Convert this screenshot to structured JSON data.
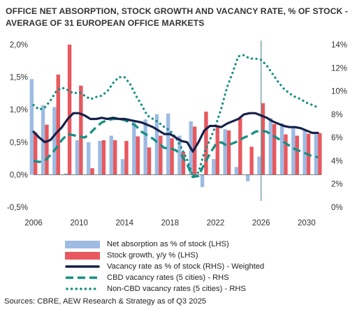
{
  "chart_data": {
    "type": "bar+line",
    "title_lines": [
      "OFFICE NET ABSORPTION, STOCK GROWTH AND VACANCY RATE, % OF STOCK -",
      "AVERAGE OF 31 EUROPEAN OFFICE MARKETS"
    ],
    "source": "Sources: CBRE, AEW Research & Strategy as of Q3 2025",
    "x_ticks": [
      "2006",
      "2010",
      "2014",
      "2018",
      "2022",
      "2026",
      "2030"
    ],
    "x_range": [
      2006,
      2031.3
    ],
    "left_axis": {
      "ticks": [
        "-0,5%",
        "0,0%",
        "0,5%",
        "1,0%",
        "1,5%",
        "2,0%"
      ],
      "range": [
        -0.5,
        2.0
      ]
    },
    "right_axis": {
      "ticks": [
        "0%",
        "2%",
        "4%",
        "6%",
        "8%",
        "10%",
        "12%",
        "14%"
      ],
      "range": [
        0,
        14
      ]
    },
    "forecast_marker_year": 2026,
    "colors": {
      "net_absorption": "#9dbbe3",
      "stock_growth": "#e8585e",
      "vacancy_weighted": "#16214a",
      "cbd": "#168f84",
      "noncbd": "#168f84",
      "forecast_line": "#6e9a9e",
      "zero_line": "#555555"
    },
    "bar_years": [
      2006,
      2007,
      2008,
      2009,
      2010,
      2011,
      2012,
      2013,
      2014,
      2015,
      2016,
      2017,
      2018,
      2019,
      2020,
      2021,
      2022,
      2023,
      2024,
      2025,
      2026,
      2027,
      2028,
      2029,
      2030,
      2031
    ],
    "series": [
      {
        "key": "net_absorption",
        "name": "Net absorption as % of stock (LHS)",
        "axis": "left",
        "values": [
          1.47,
          1.07,
          1.04,
          0.02,
          0.53,
          0.5,
          0.52,
          0.6,
          0.24,
          0.84,
          0.85,
          0.93,
          0.94,
          0.6,
          0.82,
          -0.19,
          0.24,
          0.7,
          0.12,
          -0.1,
          0.28,
          0.87,
          0.79,
          0.75,
          0.7,
          0.62
        ]
      },
      {
        "key": "stock_growth",
        "name": "Stock growth, y/y % (LHS)",
        "axis": "left",
        "values": [
          0.65,
          0.77,
          1.54,
          2.0,
          1.37,
          0.1,
          0.53,
          0.53,
          0.52,
          0.59,
          0.42,
          0.6,
          0.56,
          0.35,
          0.74,
          0.97,
          0.73,
          0.68,
          0.87,
          0.43,
          1.1,
          0.78,
          0.62,
          0.6,
          0.63,
          0.64
        ]
      },
      {
        "key": "vacancy_weighted",
        "name": "Vacancy rate as % of stock (RHS) - Weighted",
        "axis": "right",
        "x": [
          2006,
          2006.5,
          2007,
          2007.5,
          2008,
          2008.5,
          2009,
          2009.5,
          2010,
          2010.5,
          2011,
          2011.5,
          2012,
          2012.5,
          2013,
          2013.5,
          2014,
          2014.5,
          2015,
          2015.5,
          2016,
          2016.5,
          2017,
          2017.5,
          2018,
          2018.5,
          2019,
          2019.5,
          2020,
          2020.5,
          2021,
          2021.5,
          2022,
          2022.5,
          2023,
          2023.5,
          2024,
          2024.5,
          2025,
          2025.5,
          2026,
          2026.5,
          2027,
          2027.5,
          2028,
          2028.5,
          2029,
          2029.5,
          2030,
          2030.5,
          2031
        ],
        "values": [
          6.5,
          6.0,
          5.6,
          5.8,
          6.4,
          6.9,
          7.6,
          8.1,
          8.1,
          7.9,
          7.6,
          7.6,
          7.7,
          7.6,
          7.7,
          7.6,
          7.6,
          7.5,
          7.4,
          7.3,
          7.1,
          6.9,
          6.6,
          6.3,
          6.3,
          6.0,
          5.7,
          5.6,
          4.8,
          5.6,
          6.6,
          7.0,
          7.0,
          6.9,
          7.2,
          7.4,
          7.6,
          8.0,
          8.1,
          8.1,
          7.9,
          7.7,
          7.4,
          7.2,
          7.0,
          6.9,
          6.9,
          6.8,
          6.6,
          6.4,
          6.4
        ]
      },
      {
        "key": "cbd",
        "name": "CBD vacancy rates (5 cities) - RHS",
        "axis": "right",
        "x": [
          2006,
          2006.5,
          2007,
          2007.5,
          2008,
          2008.5,
          2009,
          2009.5,
          2010,
          2010.5,
          2011,
          2011.5,
          2012,
          2012.5,
          2013,
          2013.5,
          2014,
          2014.5,
          2015,
          2015.5,
          2016,
          2016.5,
          2017,
          2017.5,
          2018,
          2018.5,
          2019,
          2019.5,
          2020,
          2020.5,
          2021,
          2021.5,
          2022,
          2022.5,
          2023,
          2023.5,
          2024,
          2024.5,
          2025,
          2025.5,
          2026,
          2026.5,
          2027,
          2027.5,
          2028,
          2028.5,
          2029,
          2029.5,
          2030,
          2030.5,
          2031
        ],
        "values": [
          4.0,
          3.9,
          4.0,
          4.5,
          5.1,
          5.8,
          6.3,
          6.2,
          6.1,
          6.0,
          6.4,
          6.9,
          7.3,
          7.5,
          7.6,
          7.6,
          7.5,
          7.3,
          7.0,
          6.5,
          6.2,
          5.9,
          5.5,
          5.1,
          5.1,
          4.9,
          4.5,
          3.7,
          2.6,
          2.7,
          3.7,
          4.6,
          5.4,
          5.6,
          5.3,
          5.5,
          5.7,
          6.0,
          6.2,
          6.5,
          6.6,
          6.5,
          6.2,
          5.9,
          5.6,
          5.3,
          5.0,
          4.8,
          4.6,
          4.4,
          4.3
        ]
      },
      {
        "key": "noncbd",
        "name": "Non-CBD vacancy rates (5 cities) - RHS",
        "axis": "right",
        "x": [
          2006,
          2006.5,
          2007,
          2007.5,
          2008,
          2008.5,
          2009,
          2009.5,
          2010,
          2010.5,
          2011,
          2011.5,
          2012,
          2012.5,
          2013,
          2013.5,
          2014,
          2014.5,
          2015,
          2015.5,
          2016,
          2016.5,
          2017,
          2017.5,
          2018,
          2018.5,
          2019,
          2019.5,
          2020,
          2020.5,
          2021,
          2021.5,
          2022,
          2022.5,
          2023,
          2023.5,
          2024,
          2024.5,
          2025,
          2025.5,
          2026,
          2026.5,
          2027,
          2027.5,
          2028,
          2028.5,
          2029,
          2029.5,
          2030,
          2030.5,
          2031
        ],
        "values": [
          8.8,
          8.4,
          8.6,
          9.2,
          10.0,
          10.3,
          10.1,
          9.8,
          9.9,
          9.6,
          9.3,
          9.5,
          9.6,
          10.0,
          10.7,
          11.2,
          11.2,
          10.6,
          9.6,
          8.8,
          7.9,
          7.6,
          7.3,
          6.9,
          6.6,
          6.0,
          5.1,
          4.1,
          2.7,
          3.0,
          4.7,
          5.8,
          7.0,
          8.5,
          10.3,
          11.6,
          13.0,
          13.1,
          12.8,
          12.8,
          12.7,
          12.2,
          11.5,
          10.8,
          10.2,
          9.8,
          9.5,
          9.3,
          9.0,
          8.8,
          8.6
        ]
      }
    ],
    "legend_position": "bottom"
  }
}
